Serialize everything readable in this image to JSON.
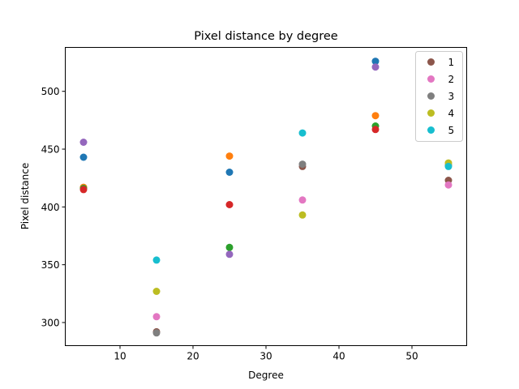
{
  "chart_data": {
    "type": "scatter",
    "title": "Pixel distance by degree",
    "xlabel": "Degree",
    "ylabel": "Pixel distance",
    "xlim": [
      2.5,
      57.5
    ],
    "ylim": [
      280,
      538
    ],
    "xticks": [
      10,
      20,
      30,
      40,
      50
    ],
    "yticks": [
      300,
      350,
      400,
      450,
      500
    ],
    "grid": false,
    "legend_position": "top-right",
    "series": [
      {
        "color": "#1f77b4",
        "points": [
          [
            5,
            443
          ],
          [
            25,
            430
          ],
          [
            45,
            526
          ]
        ]
      },
      {
        "color": "#ff7f0e",
        "points": [
          [
            5,
            417
          ],
          [
            25,
            444
          ],
          [
            45,
            479
          ]
        ]
      },
      {
        "color": "#2ca02c",
        "points": [
          [
            5,
            416
          ],
          [
            25,
            365
          ],
          [
            45,
            470
          ]
        ]
      },
      {
        "color": "#d62728",
        "points": [
          [
            5,
            415
          ],
          [
            25,
            402
          ],
          [
            45,
            467
          ]
        ]
      },
      {
        "color": "#9467bd",
        "points": [
          [
            5,
            456
          ],
          [
            25,
            359
          ],
          [
            45,
            521
          ]
        ]
      },
      {
        "name": "1",
        "color": "#8c564b",
        "points": [
          [
            15,
            292
          ],
          [
            35,
            435
          ],
          [
            55,
            423
          ]
        ]
      },
      {
        "name": "2",
        "color": "#e377c2",
        "points": [
          [
            15,
            305
          ],
          [
            35,
            406
          ],
          [
            55,
            419
          ]
        ]
      },
      {
        "name": "3",
        "color": "#7f7f7f",
        "points": [
          [
            15,
            291
          ],
          [
            35,
            437
          ],
          [
            55,
            436
          ]
        ]
      },
      {
        "name": "4",
        "color": "#bcbd22",
        "points": [
          [
            15,
            327
          ],
          [
            35,
            393
          ],
          [
            55,
            438
          ]
        ]
      },
      {
        "name": "5",
        "color": "#17becf",
        "points": [
          [
            15,
            354
          ],
          [
            35,
            464
          ],
          [
            55,
            435
          ]
        ]
      }
    ]
  }
}
